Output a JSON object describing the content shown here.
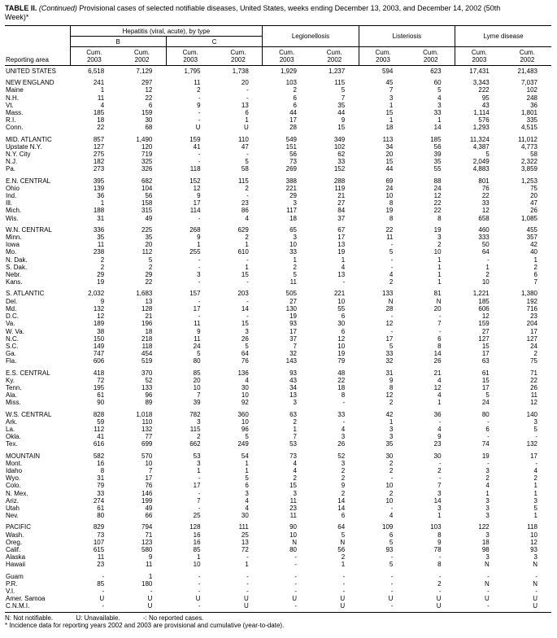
{
  "title": {
    "label": "TABLE II.",
    "continued": "(Continued)",
    "text": "Provisional cases of selected notifiable diseases, United States, weeks ending December 13, 2003, and December 14, 2002",
    "week": "(50th Week)*"
  },
  "header": {
    "reporting_area": "Reporting area",
    "hepatitis_group": "Hepatitis (viral, acute), by type",
    "hep_b": "B",
    "hep_c": "C",
    "legionellosis": "Legionellosis",
    "listeriosis": "Listeriosis",
    "lyme": "Lyme disease",
    "cum_2003": "Cum.\n2003",
    "cum_2002": "Cum.\n2002"
  },
  "table": {
    "rows": [
      {
        "area": "UNITED STATES",
        "gap": false,
        "values": [
          "6,518",
          "7,129",
          "1,795",
          "1,738",
          "1,929",
          "1,237",
          "594",
          "623",
          "17,431",
          "21,483"
        ]
      },
      {
        "area": "NEW ENGLAND",
        "gap": true,
        "values": [
          "241",
          "297",
          "11",
          "20",
          "103",
          "115",
          "45",
          "60",
          "3,343",
          "7,037"
        ]
      },
      {
        "area": "Maine",
        "gap": false,
        "values": [
          "1",
          "12",
          "2",
          "-",
          "2",
          "5",
          "7",
          "5",
          "222",
          "102"
        ]
      },
      {
        "area": "N.H.",
        "gap": false,
        "values": [
          "11",
          "22",
          "-",
          "-",
          "6",
          "7",
          "3",
          "4",
          "95",
          "248"
        ]
      },
      {
        "area": "Vt.",
        "gap": false,
        "values": [
          "4",
          "6",
          "9",
          "13",
          "6",
          "35",
          "1",
          "3",
          "43",
          "36"
        ]
      },
      {
        "area": "Mass.",
        "gap": false,
        "values": [
          "185",
          "159",
          "-",
          "6",
          "44",
          "44",
          "15",
          "33",
          "1,114",
          "1,801"
        ]
      },
      {
        "area": "R.I.",
        "gap": false,
        "values": [
          "18",
          "30",
          "-",
          "1",
          "17",
          "9",
          "1",
          "1",
          "576",
          "335"
        ]
      },
      {
        "area": "Conn.",
        "gap": false,
        "values": [
          "22",
          "68",
          "U",
          "U",
          "28",
          "15",
          "18",
          "14",
          "1,293",
          "4,515"
        ]
      },
      {
        "area": "MID. ATLANTIC",
        "gap": true,
        "values": [
          "857",
          "1,490",
          "159",
          "110",
          "549",
          "349",
          "113",
          "185",
          "11,324",
          "11,012"
        ]
      },
      {
        "area": "Upstate N.Y.",
        "gap": false,
        "values": [
          "127",
          "120",
          "41",
          "47",
          "151",
          "102",
          "34",
          "56",
          "4,387",
          "4,773"
        ]
      },
      {
        "area": "N.Y. City",
        "gap": false,
        "values": [
          "275",
          "719",
          "-",
          "-",
          "56",
          "62",
          "20",
          "39",
          "5",
          "58"
        ]
      },
      {
        "area": "N.J.",
        "gap": false,
        "values": [
          "182",
          "325",
          "-",
          "5",
          "73",
          "33",
          "15",
          "35",
          "2,049",
          "2,322"
        ]
      },
      {
        "area": "Pa.",
        "gap": false,
        "values": [
          "273",
          "326",
          "118",
          "58",
          "269",
          "152",
          "44",
          "55",
          "4,883",
          "3,859"
        ]
      },
      {
        "area": "E.N. CENTRAL",
        "gap": true,
        "values": [
          "395",
          "682",
          "152",
          "115",
          "388",
          "288",
          "69",
          "88",
          "801",
          "1,253"
        ]
      },
      {
        "area": "Ohio",
        "gap": false,
        "values": [
          "139",
          "104",
          "12",
          "2",
          "221",
          "119",
          "24",
          "24",
          "76",
          "75"
        ]
      },
      {
        "area": "Ind.",
        "gap": false,
        "values": [
          "36",
          "56",
          "9",
          "-",
          "29",
          "21",
          "10",
          "12",
          "22",
          "20"
        ]
      },
      {
        "area": "Ill.",
        "gap": false,
        "values": [
          "1",
          "158",
          "17",
          "23",
          "3",
          "27",
          "8",
          "22",
          "33",
          "47"
        ]
      },
      {
        "area": "Mich.",
        "gap": false,
        "values": [
          "188",
          "315",
          "114",
          "86",
          "117",
          "84",
          "19",
          "22",
          "12",
          "26"
        ]
      },
      {
        "area": "Wis.",
        "gap": false,
        "values": [
          "31",
          "49",
          "-",
          "4",
          "18",
          "37",
          "8",
          "8",
          "658",
          "1,085"
        ]
      },
      {
        "area": "W.N. CENTRAL",
        "gap": true,
        "values": [
          "336",
          "225",
          "268",
          "629",
          "65",
          "67",
          "22",
          "19",
          "460",
          "455"
        ]
      },
      {
        "area": "Minn.",
        "gap": false,
        "values": [
          "35",
          "35",
          "9",
          "2",
          "3",
          "17",
          "11",
          "3",
          "333",
          "357"
        ]
      },
      {
        "area": "Iowa",
        "gap": false,
        "values": [
          "11",
          "20",
          "1",
          "1",
          "10",
          "13",
          "-",
          "2",
          "50",
          "42"
        ]
      },
      {
        "area": "Mo.",
        "gap": false,
        "values": [
          "238",
          "112",
          "255",
          "610",
          "33",
          "19",
          "5",
          "10",
          "64",
          "40"
        ]
      },
      {
        "area": "N. Dak.",
        "gap": false,
        "values": [
          "2",
          "5",
          "-",
          "-",
          "1",
          "1",
          "-",
          "1",
          "-",
          "1"
        ]
      },
      {
        "area": "S. Dak.",
        "gap": false,
        "values": [
          "2",
          "2",
          "-",
          "1",
          "2",
          "4",
          "-",
          "1",
          "1",
          "2"
        ]
      },
      {
        "area": "Nebr.",
        "gap": false,
        "values": [
          "29",
          "29",
          "3",
          "15",
          "5",
          "13",
          "4",
          "1",
          "2",
          "6"
        ]
      },
      {
        "area": "Kans.",
        "gap": false,
        "values": [
          "19",
          "22",
          "-",
          "-",
          "11",
          "-",
          "2",
          "1",
          "10",
          "7"
        ]
      },
      {
        "area": "S. ATLANTIC",
        "gap": true,
        "values": [
          "2,032",
          "1,683",
          "157",
          "203",
          "505",
          "221",
          "133",
          "81",
          "1,221",
          "1,380"
        ]
      },
      {
        "area": "Del.",
        "gap": false,
        "values": [
          "9",
          "13",
          "-",
          "-",
          "27",
          "10",
          "N",
          "N",
          "185",
          "192"
        ]
      },
      {
        "area": "Md.",
        "gap": false,
        "values": [
          "132",
          "128",
          "17",
          "14",
          "130",
          "55",
          "28",
          "20",
          "606",
          "716"
        ]
      },
      {
        "area": "D.C.",
        "gap": false,
        "values": [
          "12",
          "21",
          "-",
          "-",
          "19",
          "6",
          "-",
          "-",
          "12",
          "23"
        ]
      },
      {
        "area": "Va.",
        "gap": false,
        "values": [
          "189",
          "196",
          "11",
          "15",
          "93",
          "30",
          "12",
          "7",
          "159",
          "204"
        ]
      },
      {
        "area": "W. Va.",
        "gap": false,
        "values": [
          "38",
          "18",
          "9",
          "3",
          "17",
          "6",
          "-",
          "-",
          "27",
          "17"
        ]
      },
      {
        "area": "N.C.",
        "gap": false,
        "values": [
          "150",
          "218",
          "11",
          "26",
          "37",
          "12",
          "17",
          "6",
          "127",
          "127"
        ]
      },
      {
        "area": "S.C.",
        "gap": false,
        "values": [
          "149",
          "118",
          "24",
          "5",
          "7",
          "10",
          "5",
          "8",
          "15",
          "24"
        ]
      },
      {
        "area": "Ga.",
        "gap": false,
        "values": [
          "747",
          "454",
          "5",
          "64",
          "32",
          "19",
          "33",
          "14",
          "17",
          "2"
        ]
      },
      {
        "area": "Fla.",
        "gap": false,
        "values": [
          "606",
          "519",
          "80",
          "76",
          "143",
          "79",
          "32",
          "26",
          "63",
          "75"
        ]
      },
      {
        "area": "E.S. CENTRAL",
        "gap": true,
        "values": [
          "418",
          "370",
          "85",
          "136",
          "93",
          "48",
          "31",
          "21",
          "61",
          "71"
        ]
      },
      {
        "area": "Ky.",
        "gap": false,
        "values": [
          "72",
          "52",
          "20",
          "4",
          "43",
          "22",
          "9",
          "4",
          "15",
          "22"
        ]
      },
      {
        "area": "Tenn.",
        "gap": false,
        "values": [
          "195",
          "133",
          "10",
          "30",
          "34",
          "18",
          "8",
          "12",
          "17",
          "26"
        ]
      },
      {
        "area": "Ala.",
        "gap": false,
        "values": [
          "61",
          "96",
          "7",
          "10",
          "13",
          "8",
          "12",
          "4",
          "5",
          "11"
        ]
      },
      {
        "area": "Miss.",
        "gap": false,
        "values": [
          "90",
          "89",
          "39",
          "92",
          "3",
          "-",
          "2",
          "1",
          "24",
          "12"
        ]
      },
      {
        "area": "W.S. CENTRAL",
        "gap": true,
        "values": [
          "828",
          "1,018",
          "782",
          "360",
          "63",
          "33",
          "42",
          "36",
          "80",
          "140"
        ]
      },
      {
        "area": "Ark.",
        "gap": false,
        "values": [
          "59",
          "110",
          "3",
          "10",
          "2",
          "-",
          "1",
          "-",
          "-",
          "3"
        ]
      },
      {
        "area": "La.",
        "gap": false,
        "values": [
          "112",
          "132",
          "115",
          "96",
          "1",
          "4",
          "3",
          "4",
          "6",
          "5"
        ]
      },
      {
        "area": "Okla.",
        "gap": false,
        "values": [
          "41",
          "77",
          "2",
          "5",
          "7",
          "3",
          "3",
          "9",
          "-",
          "-"
        ]
      },
      {
        "area": "Tex.",
        "gap": false,
        "values": [
          "616",
          "699",
          "662",
          "249",
          "53",
          "26",
          "35",
          "23",
          "74",
          "132"
        ]
      },
      {
        "area": "MOUNTAIN",
        "gap": true,
        "values": [
          "582",
          "570",
          "53",
          "54",
          "73",
          "52",
          "30",
          "30",
          "19",
          "17"
        ]
      },
      {
        "area": "Mont.",
        "gap": false,
        "values": [
          "16",
          "10",
          "3",
          "1",
          "4",
          "3",
          "2",
          "-",
          "-",
          "-"
        ]
      },
      {
        "area": "Idaho",
        "gap": false,
        "values": [
          "8",
          "7",
          "1",
          "1",
          "4",
          "2",
          "2",
          "2",
          "3",
          "4"
        ]
      },
      {
        "area": "Wyo.",
        "gap": false,
        "values": [
          "31",
          "17",
          "-",
          "5",
          "2",
          "2",
          "-",
          "-",
          "2",
          "2"
        ]
      },
      {
        "area": "Colo.",
        "gap": false,
        "values": [
          "79",
          "76",
          "17",
          "6",
          "15",
          "9",
          "10",
          "7",
          "4",
          "1"
        ]
      },
      {
        "area": "N. Mex.",
        "gap": false,
        "values": [
          "33",
          "146",
          "-",
          "3",
          "3",
          "2",
          "2",
          "3",
          "1",
          "1"
        ]
      },
      {
        "area": "Ariz.",
        "gap": false,
        "values": [
          "274",
          "199",
          "7",
          "4",
          "11",
          "14",
          "10",
          "14",
          "3",
          "3"
        ]
      },
      {
        "area": "Utah",
        "gap": false,
        "values": [
          "61",
          "49",
          "-",
          "4",
          "23",
          "14",
          "-",
          "3",
          "3",
          "5"
        ]
      },
      {
        "area": "Nev.",
        "gap": false,
        "values": [
          "80",
          "66",
          "25",
          "30",
          "11",
          "6",
          "4",
          "1",
          "3",
          "1"
        ]
      },
      {
        "area": "PACIFIC",
        "gap": true,
        "values": [
          "829",
          "794",
          "128",
          "111",
          "90",
          "64",
          "109",
          "103",
          "122",
          "118"
        ]
      },
      {
        "area": "Wash.",
        "gap": false,
        "values": [
          "73",
          "71",
          "16",
          "25",
          "10",
          "5",
          "6",
          "8",
          "3",
          "10"
        ]
      },
      {
        "area": "Oreg.",
        "gap": false,
        "values": [
          "107",
          "123",
          "16",
          "13",
          "N",
          "N",
          "5",
          "9",
          "18",
          "12"
        ]
      },
      {
        "area": "Calif.",
        "gap": false,
        "values": [
          "615",
          "580",
          "85",
          "72",
          "80",
          "56",
          "93",
          "78",
          "98",
          "93"
        ]
      },
      {
        "area": "Alaska",
        "gap": false,
        "values": [
          "11",
          "9",
          "1",
          "-",
          "-",
          "2",
          "-",
          "-",
          "3",
          "3"
        ]
      },
      {
        "area": "Hawaii",
        "gap": false,
        "values": [
          "23",
          "11",
          "10",
          "1",
          "-",
          "1",
          "5",
          "8",
          "N",
          "N"
        ]
      },
      {
        "area": "Guam",
        "gap": true,
        "values": [
          "-",
          "1",
          "-",
          "-",
          "-",
          "-",
          "-",
          "-",
          "-",
          "-"
        ]
      },
      {
        "area": "P.R.",
        "gap": false,
        "values": [
          "85",
          "180",
          "-",
          "-",
          "-",
          "-",
          "-",
          "2",
          "N",
          "N"
        ]
      },
      {
        "area": "V.I.",
        "gap": false,
        "values": [
          "-",
          "-",
          "-",
          "-",
          "-",
          "-",
          "-",
          "-",
          "-",
          "-"
        ]
      },
      {
        "area": "Amer. Samoa",
        "gap": false,
        "values": [
          "U",
          "U",
          "U",
          "U",
          "U",
          "U",
          "U",
          "U",
          "U",
          "U"
        ]
      },
      {
        "area": "C.N.M.I.",
        "gap": false,
        "values": [
          "-",
          "U",
          "-",
          "U",
          "-",
          "U",
          "-",
          "U",
          "-",
          "U"
        ]
      }
    ]
  },
  "footnotes": {
    "legend_n": "N: Not notifiable.",
    "legend_u": "U: Unavailable.",
    "legend_dash": "-: No reported cases.",
    "note": "* Incidence data for reporting years 2002 and 2003 are provisional and cumulative (year-to-date)."
  }
}
